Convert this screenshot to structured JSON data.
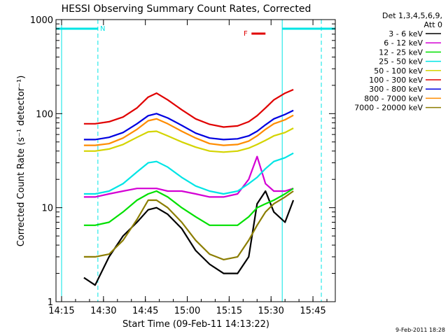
{
  "chart_data": {
    "type": "line",
    "title": "HESSI Observing Summary Count Rates, Corrected",
    "xlabel": "Start Time (09-Feb-11 14:13:22)",
    "ylabel": "Corrected Count Rate (s⁻¹ detector⁻¹)",
    "yscale": "log",
    "xlim": [
      "14:13",
      "15:53"
    ],
    "ylim": [
      1,
      1000
    ],
    "x_ticks": [
      "14:15",
      "14:30",
      "14:45",
      "15:00",
      "15:15",
      "15:30",
      "15:45"
    ],
    "y_ticks": [
      "1",
      "10",
      "100",
      "1000"
    ],
    "legend_header": [
      "Det 1,3,4,5,6,9,",
      "Att 0"
    ],
    "legend_position": "outside-right",
    "footer": "9-Feb-2011 18:28",
    "annotations": {
      "n_label": "N",
      "f_label": "F",
      "night_start": "14:15",
      "night_end": "14:28",
      "day_gap_start": "15:34",
      "day_gap_end": "15:48",
      "flare_start": "15:23",
      "flare_end": "15:28"
    },
    "x": [
      "14:23",
      "14:27",
      "14:32",
      "14:37",
      "14:42",
      "14:46",
      "14:49",
      "14:53",
      "14:58",
      "15:03",
      "15:08",
      "15:13",
      "15:18",
      "15:22",
      "15:25",
      "15:28",
      "15:31",
      "15:35",
      "15:38"
    ],
    "series": [
      {
        "name": "3 - 6 keV",
        "color": "#000000",
        "values": [
          1.8,
          1.5,
          3.0,
          5.0,
          7.0,
          9.5,
          10.0,
          8.5,
          6.0,
          3.5,
          2.5,
          2.0,
          2.0,
          3.0,
          11.0,
          15.0,
          9.0,
          7.0,
          12.0
        ]
      },
      {
        "name": "6 - 12 keV",
        "color": "#d400d4",
        "values": [
          13,
          13,
          14,
          15,
          16,
          16,
          16,
          15,
          15,
          14,
          13,
          13,
          14,
          20,
          35,
          18,
          15,
          15,
          16
        ]
      },
      {
        "name": "12 - 25 keV",
        "color": "#00e000",
        "values": [
          6.5,
          6.5,
          7.0,
          9.0,
          12.0,
          14.0,
          15.0,
          13.0,
          10.0,
          8.0,
          6.5,
          6.5,
          6.5,
          8.0,
          10.0,
          11.0,
          12.0,
          14.0,
          16.0
        ]
      },
      {
        "name": "25 - 50 keV",
        "color": "#00e5e5",
        "values": [
          14,
          14,
          15,
          18,
          24,
          30,
          31,
          27,
          21,
          17,
          15,
          14,
          15,
          18,
          21,
          26,
          31,
          34,
          38
        ]
      },
      {
        "name": "50 - 100 keV",
        "color": "#d4d400",
        "values": [
          40,
          40,
          42,
          47,
          56,
          64,
          65,
          58,
          50,
          44,
          40,
          39,
          40,
          43,
          47,
          52,
          58,
          63,
          70
        ]
      },
      {
        "name": "100 - 300 keV",
        "color": "#e00000",
        "values": [
          78,
          78,
          82,
          92,
          115,
          150,
          165,
          140,
          110,
          88,
          77,
          72,
          74,
          82,
          95,
          115,
          140,
          165,
          180
        ]
      },
      {
        "name": "300 - 800 keV",
        "color": "#0000e0",
        "values": [
          53,
          53,
          56,
          63,
          78,
          95,
          100,
          90,
          75,
          62,
          55,
          53,
          54,
          58,
          65,
          76,
          88,
          98,
          108
        ]
      },
      {
        "name": "800 - 7000 keV",
        "color": "#ff8c00",
        "values": [
          46,
          46,
          48,
          55,
          68,
          84,
          88,
          78,
          65,
          55,
          48,
          46,
          47,
          51,
          58,
          68,
          78,
          86,
          96
        ]
      },
      {
        "name": "7000 - 20000 keV",
        "color": "#8b7d00",
        "values": [
          3.0,
          3.0,
          3.2,
          4.5,
          7.5,
          12.0,
          12.0,
          10.0,
          7.0,
          4.5,
          3.2,
          2.8,
          3.0,
          4.5,
          6.5,
          9.0,
          11.0,
          13.0,
          15.0
        ]
      }
    ]
  }
}
